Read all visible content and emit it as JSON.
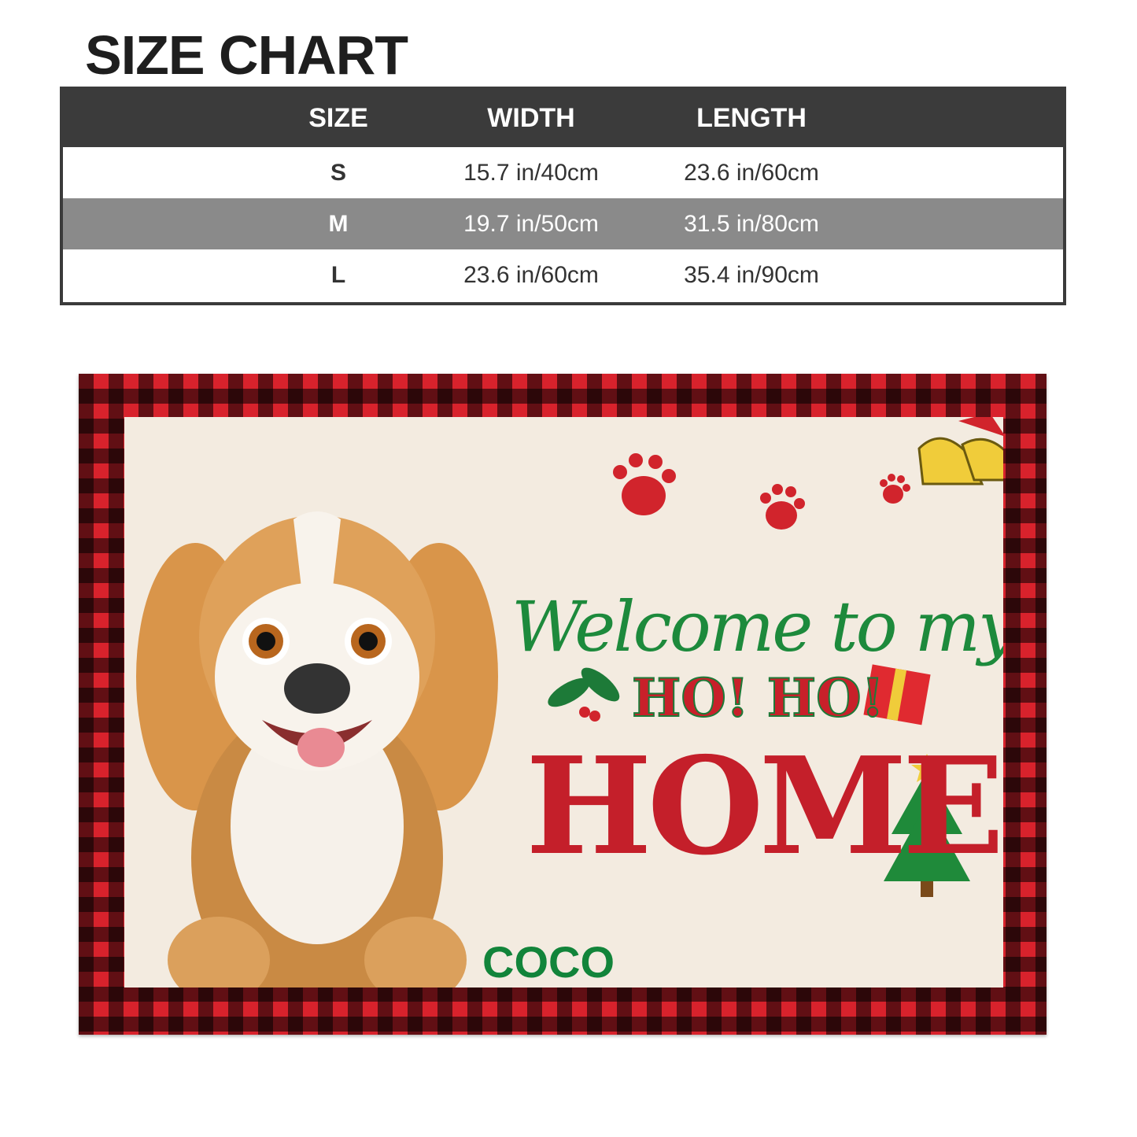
{
  "title": "SIZE CHART",
  "table": {
    "headers": [
      "SIZE",
      "WIDTH",
      "LENGTH"
    ],
    "rows": [
      [
        "S",
        "15.7 in/40cm",
        "23.6 in/60cm"
      ],
      [
        "M",
        "19.7 in/50cm",
        "31.5 in/80cm"
      ],
      [
        "L",
        "23.6 in/60cm",
        "35.4 in/90cm"
      ]
    ]
  },
  "mat": {
    "line1": "Welcome to my",
    "line2": "HO! HO!",
    "line3": "HOME",
    "name": "COCO",
    "colors": {
      "red": "#d8222c",
      "green": "#1d8a3c",
      "cream": "#f3ebe0"
    }
  }
}
